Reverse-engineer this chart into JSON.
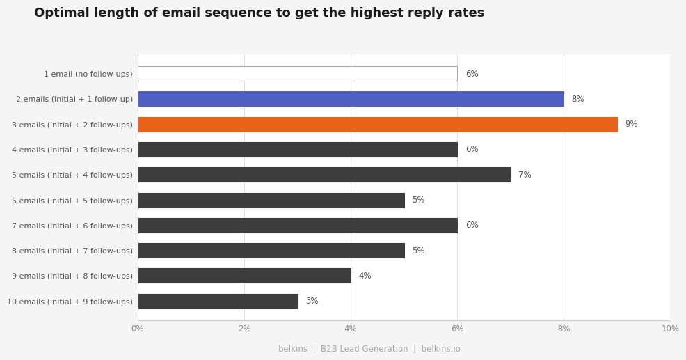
{
  "title": "Optimal length of email sequence to get the highest reply rates",
  "categories": [
    "1 email (no follow-ups)",
    "2 emails (initial + 1 follow-up)",
    "3 emails (initial + 2 follow-ups)",
    "4 emails (initial + 3 follow-ups)",
    "5 emails (initial + 4 follow-ups)",
    "6 emails (initial + 5 follow-ups)",
    "7 emails (initial + 6 follow-ups)",
    "8 emails (initial + 7 follow-ups)",
    "9 emails (initial + 8 follow-ups)",
    "10 emails (initial + 9 follow-ups)"
  ],
  "values": [
    6,
    8,
    9,
    6,
    7,
    5,
    6,
    5,
    4,
    3
  ],
  "bar_colors": [
    "#ffffff",
    "#4f5fc4",
    "#e8621a",
    "#3d3d3d",
    "#3d3d3d",
    "#3d3d3d",
    "#3d3d3d",
    "#3d3d3d",
    "#3d3d3d",
    "#3d3d3d"
  ],
  "bar_edge_colors": [
    "#aaaaaa",
    "#4f5fc4",
    "#e8621a",
    "#3d3d3d",
    "#3d3d3d",
    "#3d3d3d",
    "#3d3d3d",
    "#3d3d3d",
    "#3d3d3d",
    "#3d3d3d"
  ],
  "value_labels": [
    "6%",
    "8%",
    "9%",
    "6%",
    "7%",
    "5%",
    "6%",
    "5%",
    "4%",
    "3%"
  ],
  "value_colors": [
    "#555555",
    "#555555",
    "#555555",
    "#555555",
    "#555555",
    "#555555",
    "#555555",
    "#555555",
    "#555555",
    "#555555"
  ],
  "xlim": [
    0,
    10
  ],
  "xtick_labels": [
    "0%",
    "2%",
    "4%",
    "6%",
    "8%",
    "10%"
  ],
  "xtick_values": [
    0,
    2,
    4,
    6,
    8,
    10
  ],
  "background_color": "#f5f5f5",
  "plot_background_color": "#ffffff",
  "title_fontsize": 13,
  "label_fontsize": 8,
  "value_fontsize": 8.5,
  "footer_text": "belkıns  |  B2B Lead Generation  |  belkins.io"
}
